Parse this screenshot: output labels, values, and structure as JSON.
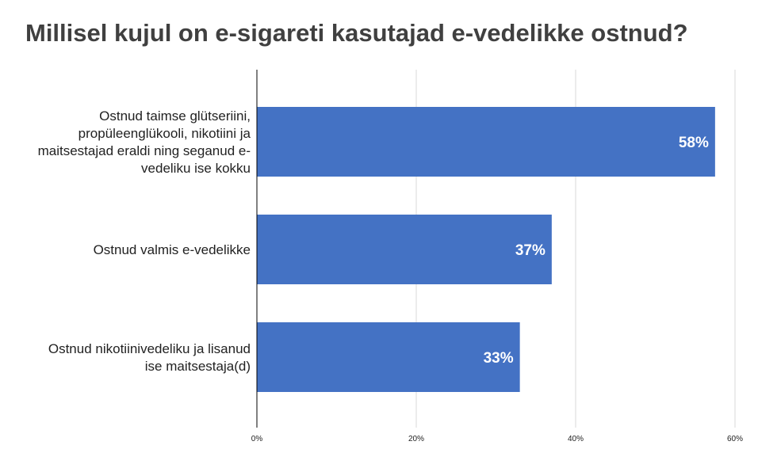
{
  "chart_data": {
    "type": "bar",
    "orientation": "horizontal",
    "title": "Millisel kujul on e-sigareti kasutajad e-vedelikke ostnud?",
    "xlabel": "",
    "ylabel": "",
    "categories": [
      "Ostnud taimse glütseriini, propüleenglükooli, nikotiini ja maitsestajad eraldi ning seganud e-vedeliku ise kokku",
      "Ostnud valmis e-vedelikke",
      "Ostnud nikotiinivedeliku ja lisanud ise maitsestaja(d)"
    ],
    "category_label_lines": [
      [
        "Ostnud taimse glütseriini,",
        "propüleenglükooli, nikotiini ja",
        "maitsestajad eraldi ning seganud e-",
        "vedeliku ise kokku"
      ],
      [
        "Ostnud valmis e-vedelikke"
      ],
      [
        "Ostnud nikotiinivedeliku ja lisanud",
        "ise maitsestaja(d)"
      ]
    ],
    "values": [
      57.5,
      37,
      33
    ],
    "value_labels": [
      "58%",
      "37%",
      "33%"
    ],
    "xlim": [
      0,
      60
    ],
    "xticks": [
      0,
      20,
      40,
      60
    ],
    "xtick_labels": [
      "0%",
      "20%",
      "40%",
      "60%"
    ],
    "grid": true,
    "legend": "none",
    "colors": {
      "bar": "#4472C4",
      "grid": "#D9D9D9",
      "axis": "#000000",
      "title": "#404040"
    }
  }
}
